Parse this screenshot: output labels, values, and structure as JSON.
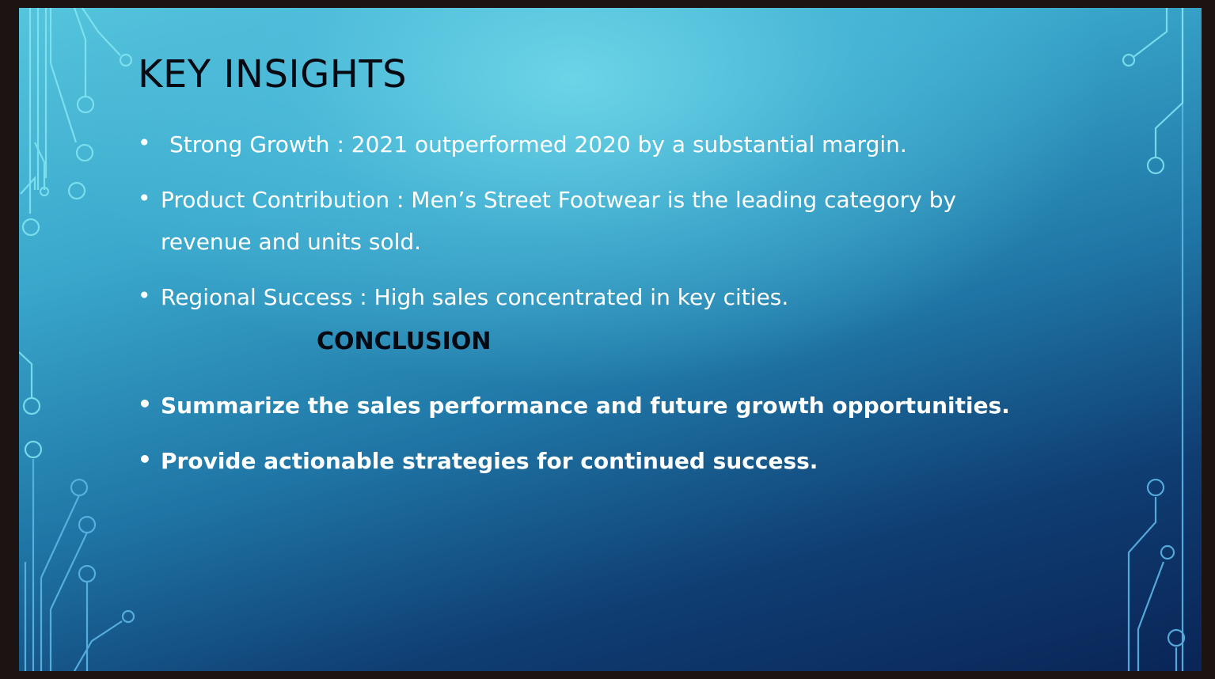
{
  "slide": {
    "title": "KEY INSIGHTS",
    "insights": [
      "Strong Growth : 2021 outperformed 2020 by a substantial margin.",
      "Product Contribution : Men’s Street Footwear is the leading category by",
      "revenue and units sold.",
      "Regional Success : High sales concentrated in key cities."
    ],
    "conclusion_heading": "CONCLUSION",
    "conclusions": [
      "Summarize the sales performance and future growth opportunities.",
      "Provide actionable strategies for continued success."
    ],
    "bullet_glyph": "•",
    "colors": {
      "title": "#050a12",
      "body_text": "#ffffff",
      "circuit_line": "#7fe3f0"
    },
    "decoration": "circuit-board-lines"
  }
}
